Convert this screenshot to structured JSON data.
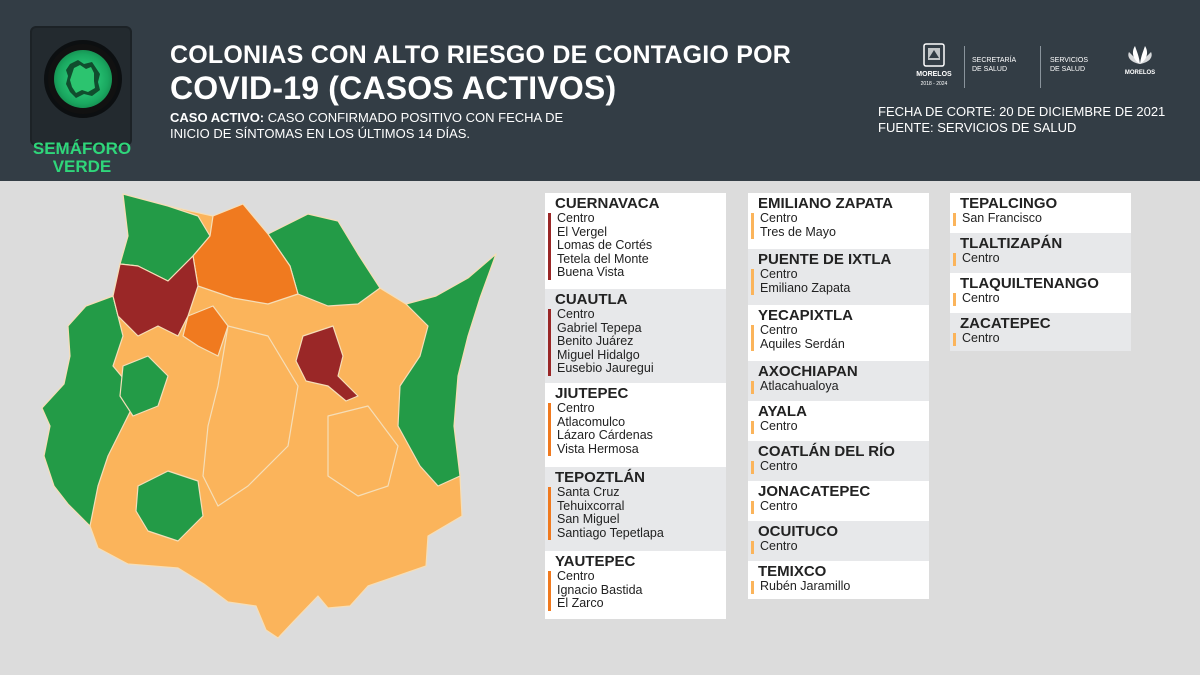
{
  "header": {
    "semaforo_label_1": "SEMÁFORO",
    "semaforo_label_2": "VERDE",
    "title_line1": "COLONIAS CON ALTO RIESGO DE CONTAGIO POR",
    "title_line2": "COVID-19 (CASOS ACTIVOS)",
    "definition_label": "CASO ACTIVO:",
    "definition_text_1": " CASO CONFIRMADO POSITIVO CON FECHA DE",
    "definition_text_2": "INICIO DE SÍNTOMAS EN LOS ÚLTIMOS 14 DÍAS.",
    "fecha_corte": "FECHA DE CORTE: 20 DE DICIEMBRE DE 2021",
    "fuente": "FUENTE: SERVICIOS DE SALUD",
    "logos": {
      "morelos": "MORELOS",
      "morelos_years": "2018 - 2024",
      "secretaria_1": "SECRETARÍA",
      "secretaria_2": "DE SALUD",
      "servicios_1": "SERVICIOS",
      "servicios_2": "DE SALUD",
      "brand": "MORELOS"
    }
  },
  "colors": {
    "header_bg": "#333d45",
    "background": "#dcdcdc",
    "high_risk_red": "#9a2727",
    "orange": "#f07a1f",
    "yellow_orange": "#fbb45b",
    "green": "#239b47",
    "semaforo_green": "#2fd67a"
  },
  "municipalities": [
    {
      "name": "CUERNAVACA",
      "risk": "red",
      "colonias": [
        "Centro",
        "El Vergel",
        "Lomas de Cortés",
        "Tetela del Monte",
        "Buena Vista"
      ]
    },
    {
      "name": "CUAUTLA",
      "risk": "red",
      "colonias": [
        "Centro",
        "Gabriel Tepepa",
        "Benito Juárez",
        "Miguel Hidalgo",
        "Eusebio Jauregui"
      ]
    },
    {
      "name": "JIUTEPEC",
      "risk": "orange",
      "colonias": [
        "Centro",
        "Atlacomulco",
        "Lázaro Cárdenas",
        "Vista Hermosa"
      ]
    },
    {
      "name": "TEPOZTLÁN",
      "risk": "orange",
      "colonias": [
        "Santa Cruz",
        "Tehuixcorral",
        "San Miguel",
        "Santiago Tepetlapa"
      ]
    },
    {
      "name": "YAUTEPEC",
      "risk": "orange",
      "colonias": [
        "Centro",
        "Ignacio Bastida",
        "El Zarco"
      ]
    },
    {
      "name": "EMILIANO ZAPATA",
      "risk": "yellow",
      "colonias": [
        "Centro",
        "Tres de Mayo"
      ]
    },
    {
      "name": "PUENTE DE IXTLA",
      "risk": "yellow",
      "colonias": [
        "Centro",
        "Emiliano Zapata"
      ]
    },
    {
      "name": "YECAPIXTLA",
      "risk": "yellow",
      "colonias": [
        "Centro",
        "Aquiles Serdán"
      ]
    },
    {
      "name": "AXOCHIAPAN",
      "risk": "yellow",
      "colonias": [
        "Atlacahualoya"
      ]
    },
    {
      "name": "AYALA",
      "risk": "yellow",
      "colonias": [
        "Centro"
      ]
    },
    {
      "name": "COATLÁN DEL RÍO",
      "risk": "yellow",
      "colonias": [
        "Centro"
      ]
    },
    {
      "name": "JONACATEPEC",
      "risk": "yellow",
      "colonias": [
        "Centro"
      ]
    },
    {
      "name": "OCUITUCO",
      "risk": "yellow",
      "colonias": [
        "Centro"
      ]
    },
    {
      "name": "TEMIXCO",
      "risk": "yellow",
      "colonias": [
        "Rubén Jaramillo"
      ]
    },
    {
      "name": "TEPALCINGO",
      "risk": "yellow",
      "colonias": [
        "San Francisco"
      ]
    },
    {
      "name": "TLALTIZAPÁN",
      "risk": "yellow",
      "colonias": [
        "Centro"
      ]
    },
    {
      "name": "TLAQUILTENANGO",
      "risk": "yellow",
      "colonias": [
        "Centro"
      ]
    },
    {
      "name": "ZACATEPEC",
      "risk": "yellow",
      "colonias": [
        "Centro"
      ]
    }
  ]
}
